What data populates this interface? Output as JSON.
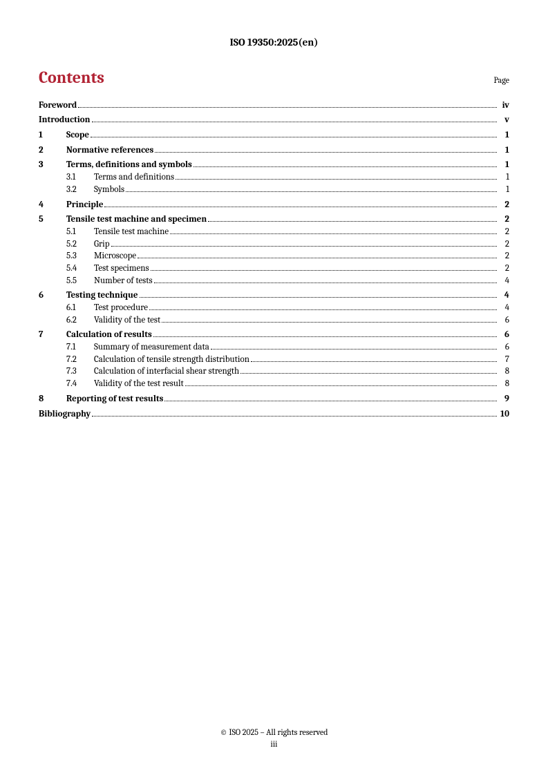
{
  "header": {
    "doc_id": "ISO 19350:2025(en)"
  },
  "title": {
    "contents": "Contents",
    "page_label": "Page"
  },
  "toc": {
    "rows": [
      {
        "num": "",
        "subnum": "",
        "title": "Foreword",
        "page": "iv",
        "bold": true,
        "indent": 0,
        "gap": false
      },
      {
        "num": "",
        "subnum": "",
        "title": "Introduction",
        "page": "v",
        "bold": true,
        "indent": 0,
        "gap": true
      },
      {
        "num": "1",
        "subnum": "",
        "title": "Scope",
        "page": "1",
        "bold": true,
        "indent": 1,
        "gap": true
      },
      {
        "num": "2",
        "subnum": "",
        "title": "Normative references",
        "page": "1",
        "bold": true,
        "indent": 1,
        "gap": true
      },
      {
        "num": "3",
        "subnum": "",
        "title": "Terms, definitions and symbols",
        "page": "1",
        "bold": true,
        "indent": 1,
        "gap": true
      },
      {
        "num": "",
        "subnum": "3.1",
        "title": "Terms and definitions",
        "page": "1",
        "bold": false,
        "indent": 2,
        "gap": false
      },
      {
        "num": "",
        "subnum": "3.2",
        "title": "Symbols",
        "page": "1",
        "bold": false,
        "indent": 2,
        "gap": false
      },
      {
        "num": "4",
        "subnum": "",
        "title": "Principle",
        "page": "2",
        "bold": true,
        "indent": 1,
        "gap": true
      },
      {
        "num": "5",
        "subnum": "",
        "title": "Tensile test machine and specimen",
        "page": "2",
        "bold": true,
        "indent": 1,
        "gap": true
      },
      {
        "num": "",
        "subnum": "5.1",
        "title": "Tensile test machine",
        "page": "2",
        "bold": false,
        "indent": 2,
        "gap": false
      },
      {
        "num": "",
        "subnum": "5.2",
        "title": "Grip",
        "page": "2",
        "bold": false,
        "indent": 2,
        "gap": false
      },
      {
        "num": "",
        "subnum": "5.3",
        "title": "Microscope",
        "page": "2",
        "bold": false,
        "indent": 2,
        "gap": false
      },
      {
        "num": "",
        "subnum": "5.4",
        "title": "Test specimens",
        "page": "2",
        "bold": false,
        "indent": 2,
        "gap": false
      },
      {
        "num": "",
        "subnum": "5.5",
        "title": "Number of tests",
        "page": "4",
        "bold": false,
        "indent": 2,
        "gap": false
      },
      {
        "num": "6",
        "subnum": "",
        "title": "Testing technique",
        "page": "4",
        "bold": true,
        "indent": 1,
        "gap": true
      },
      {
        "num": "",
        "subnum": "6.1",
        "title": "Test procedure",
        "page": "4",
        "bold": false,
        "indent": 2,
        "gap": false
      },
      {
        "num": "",
        "subnum": "6.2",
        "title": "Validity of the test",
        "page": "6",
        "bold": false,
        "indent": 2,
        "gap": false
      },
      {
        "num": "7",
        "subnum": "",
        "title": "Calculation of results",
        "page": "6",
        "bold": true,
        "indent": 1,
        "gap": true
      },
      {
        "num": "",
        "subnum": "7.1",
        "title": "Summary of measurement data",
        "page": "6",
        "bold": false,
        "indent": 2,
        "gap": false
      },
      {
        "num": "",
        "subnum": "7.2",
        "title": "Calculation of tensile strength distribution",
        "page": "7",
        "bold": false,
        "indent": 2,
        "gap": false
      },
      {
        "num": "",
        "subnum": "7.3",
        "title": "Calculation of interfacial shear strength",
        "page": "8",
        "bold": false,
        "indent": 2,
        "gap": false
      },
      {
        "num": "",
        "subnum": "7.4",
        "title": "Validity of the test result",
        "page": "8",
        "bold": false,
        "indent": 2,
        "gap": false
      },
      {
        "num": "8",
        "subnum": "",
        "title": "Reporting of test results",
        "page": "9",
        "bold": true,
        "indent": 1,
        "gap": true
      },
      {
        "num": "",
        "subnum": "",
        "title": "Bibliography",
        "page": "10",
        "bold": true,
        "indent": 0,
        "gap": true
      }
    ]
  },
  "footer": {
    "copyright": "© ISO 2025 – All rights reserved",
    "page_number": "iii"
  },
  "colors": {
    "accent": "#b12233",
    "text": "#000000",
    "background": "#ffffff"
  }
}
